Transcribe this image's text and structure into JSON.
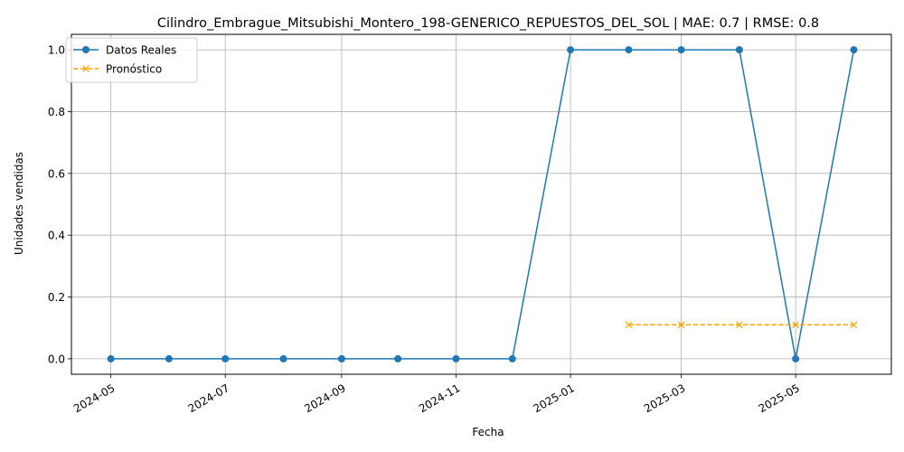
{
  "chart_data": {
    "type": "line",
    "title": "Cilindro_Embrague_Mitsubishi_Montero_198-GENERICO_REPUESTOS_DEL_SOL | MAE: 0.7 | RMSE: 0.8",
    "xlabel": "Fecha",
    "ylabel": "Unidades vendidas",
    "ylim": [
      -0.05,
      1.05
    ],
    "xlim": [
      "2024-04-10",
      "2025-06-21"
    ],
    "grid": true,
    "legend_position": "top-left",
    "x_ticks": [
      "2024-05-01",
      "2024-07-01",
      "2024-09-01",
      "2024-11-01",
      "2025-01-01",
      "2025-03-01",
      "2025-05-01"
    ],
    "x_tick_labels": [
      "2024-05",
      "2024-07",
      "2024-09",
      "2024-11",
      "2025-01",
      "2025-03",
      "2025-05"
    ],
    "y_ticks": [
      0.0,
      0.2,
      0.4,
      0.6,
      0.8,
      1.0
    ],
    "y_tick_labels": [
      "0.0",
      "0.2",
      "0.4",
      "0.6",
      "0.8",
      "1.0"
    ],
    "series": [
      {
        "name": "Datos Reales",
        "color": "#1f77b4",
        "marker": "circle",
        "linestyle": "solid",
        "x": [
          "2024-05-01",
          "2024-06-01",
          "2024-07-01",
          "2024-08-01",
          "2024-09-01",
          "2024-10-01",
          "2024-11-01",
          "2024-12-01",
          "2025-01-01",
          "2025-02-01",
          "2025-03-01",
          "2025-04-01",
          "2025-05-01",
          "2025-06-01"
        ],
        "values": [
          0,
          0,
          0,
          0,
          0,
          0,
          0,
          0,
          1,
          1,
          1,
          1,
          0,
          1
        ]
      },
      {
        "name": "Pronóstico",
        "color": "#ffa500",
        "marker": "x",
        "linestyle": "dashed",
        "x": [
          "2025-02-01",
          "2025-03-01",
          "2025-04-01",
          "2025-05-01",
          "2025-06-01"
        ],
        "values": [
          0.11,
          0.11,
          0.11,
          0.11,
          0.11
        ]
      }
    ]
  }
}
